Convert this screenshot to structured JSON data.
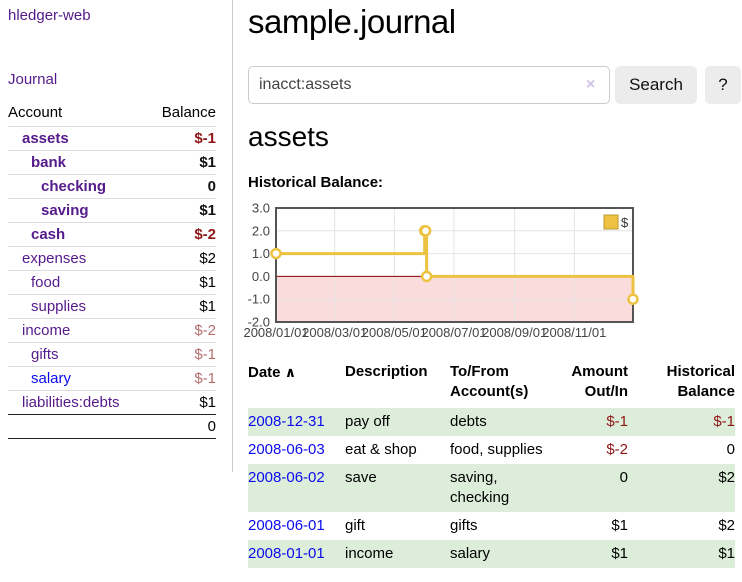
{
  "app": {
    "brand": "hledger-web"
  },
  "sidebar": {
    "journal_link": "Journal",
    "accounts": {
      "header_account": "Account",
      "header_balance": "Balance",
      "rows": [
        {
          "name": "assets",
          "name_cls": "acct d1 strong",
          "balance": "$-1",
          "bal_cls": "balance c-negb"
        },
        {
          "name": "bank",
          "name_cls": "acct d2 strong",
          "balance": "$1",
          "bal_cls": "balance c-posb"
        },
        {
          "name": "checking",
          "name_cls": "acct d3 strong",
          "balance": "0",
          "bal_cls": "balance c-posb"
        },
        {
          "name": "saving",
          "name_cls": "acct d3 strong",
          "balance": "$1",
          "bal_cls": "balance c-posb"
        },
        {
          "name": "cash",
          "name_cls": "acct d2 strong",
          "balance": "$-2",
          "bal_cls": "balance c-negb"
        },
        {
          "name": "expenses",
          "name_cls": "acct d1",
          "balance": "$2",
          "bal_cls": "balance"
        },
        {
          "name": "food",
          "name_cls": "acct d2",
          "balance": "$1",
          "bal_cls": "balance"
        },
        {
          "name": "supplies",
          "name_cls": "acct d2",
          "balance": "$1",
          "bal_cls": "balance"
        },
        {
          "name": "income",
          "name_cls": "acct d1",
          "balance": "$-2",
          "bal_cls": "balance c-negl"
        },
        {
          "name": "gifts",
          "name_cls": "acct d2",
          "balance": "$-1",
          "bal_cls": "balance c-negl"
        },
        {
          "name": "salary",
          "name_cls": "acct d2 c-blue",
          "balance": "$-1",
          "bal_cls": "balance c-negl"
        },
        {
          "name": "liabilities:debts",
          "name_cls": "acct d1",
          "balance": "$1",
          "bal_cls": "balance"
        }
      ],
      "total": "0"
    }
  },
  "main": {
    "title": "sample.journal",
    "search": {
      "value": "inacct:assets",
      "clear_icon": "×",
      "button_label": "Search",
      "help_label": "?"
    },
    "section_title": "assets",
    "chart_label": "Historical Balance:",
    "register": {
      "headers": {
        "date": "Date",
        "sort_icon": "∧",
        "description": "Description",
        "accounts": "To/From Account(s)",
        "amount": "Amount Out/In",
        "historical": "Historical Balance"
      },
      "rows": [
        {
          "row_cls": "r-green",
          "date": "2008-12-31",
          "description": "pay off",
          "accounts": "debts",
          "amount": "$-1",
          "amt_cls": "num pad-r c-neg",
          "historical": "$-1",
          "hist_cls": "num c-neg"
        },
        {
          "row_cls": "",
          "date": "2008-06-03",
          "description": "eat & shop",
          "accounts": "food, supplies",
          "amount": "$-2",
          "amt_cls": "num pad-r c-neg",
          "historical": "0",
          "hist_cls": "num"
        },
        {
          "row_cls": "r-green",
          "date": "2008-06-02",
          "description": "save",
          "accounts": "saving, checking",
          "amount": "0",
          "amt_cls": "num pad-r",
          "historical": "$2",
          "hist_cls": "num"
        },
        {
          "row_cls": "",
          "date": "2008-06-01",
          "description": "gift",
          "accounts": "gifts",
          "amount": "$1",
          "amt_cls": "num pad-r",
          "historical": "$2",
          "hist_cls": "num"
        },
        {
          "row_cls": "r-green",
          "date": "2008-01-01",
          "description": "income",
          "accounts": "salary",
          "amount": "$1",
          "amt_cls": "num pad-r",
          "historical": "$1",
          "hist_cls": "num"
        }
      ]
    }
  },
  "chart_data": {
    "type": "line",
    "step": true,
    "title": "Historical Balance",
    "legend": {
      "position": "top-right",
      "entries": [
        "$"
      ]
    },
    "x_range": [
      "2008-01-01",
      "2008-12-31"
    ],
    "ylim": [
      -2,
      3
    ],
    "yticks": [
      3.0,
      2.0,
      1.0,
      0.0,
      -1.0,
      -2.0
    ],
    "xticks": [
      {
        "date": "2008-01-01",
        "label": "2008/01/01"
      },
      {
        "date": "2008-03-01",
        "label": "2008/03/01"
      },
      {
        "date": "2008-05-01",
        "label": "2008/05/01"
      },
      {
        "date": "2008-07-01",
        "label": "2008/07/01"
      },
      {
        "date": "2008-09-01",
        "label": "2008/09/01"
      },
      {
        "date": "2008-11-01",
        "label": "2008/11/01"
      }
    ],
    "series": [
      {
        "name": "$",
        "color": "#EDC240",
        "points": [
          {
            "date": "2008-01-01",
            "value": 1
          },
          {
            "date": "2008-06-01",
            "value": 2
          },
          {
            "date": "2008-06-02",
            "value": 2
          },
          {
            "date": "2008-06-03",
            "value": 0
          },
          {
            "date": "2008-12-31",
            "value": -1
          }
        ]
      }
    ],
    "grid": true,
    "colors": {
      "negative_region": "#fbdcdc",
      "zero_line": "#8b0000",
      "grid": "#e4e4e4",
      "border": "#545454",
      "tick_text": "#444444",
      "legend_border": "#bd9b30",
      "legend_text": "#333333"
    }
  }
}
